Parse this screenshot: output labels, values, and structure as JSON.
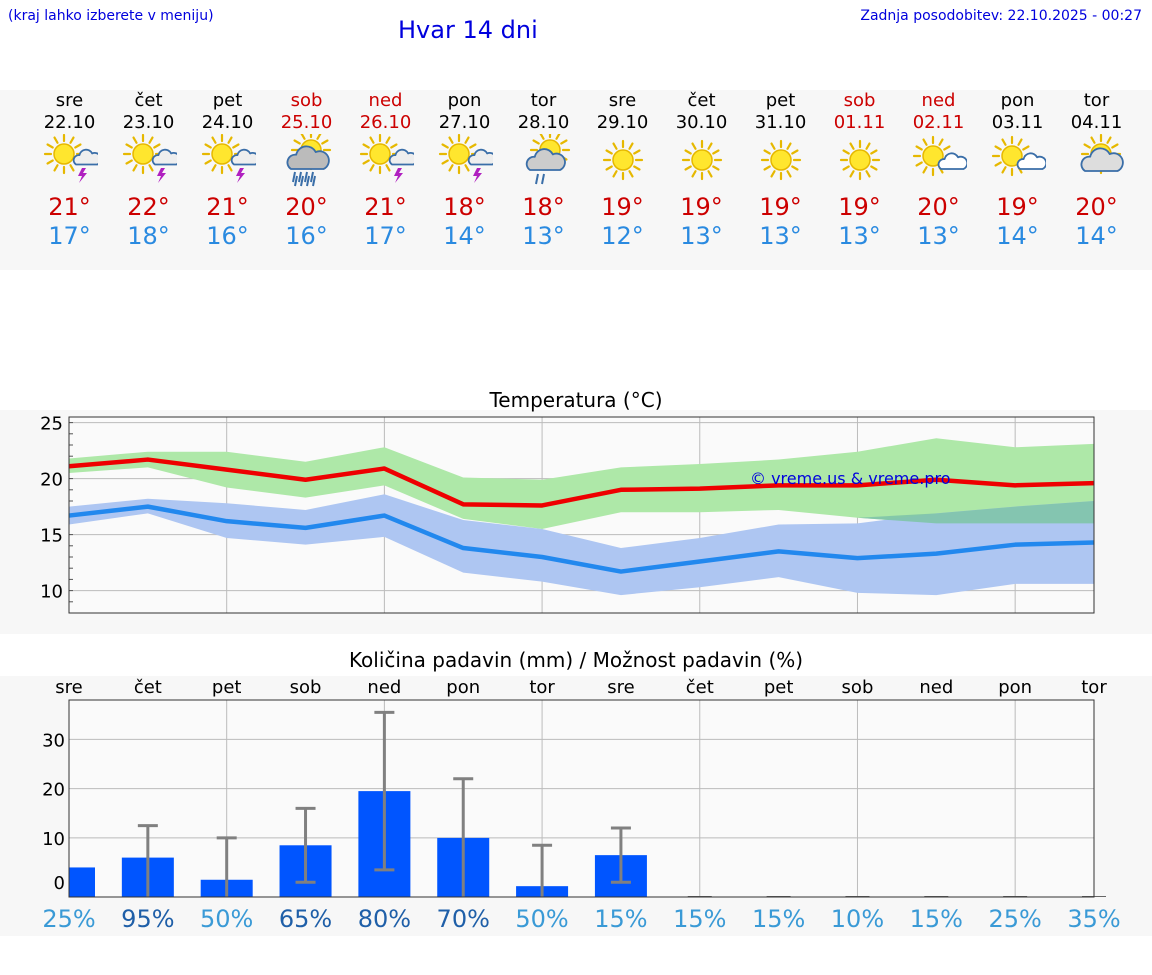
{
  "header": {
    "hint": "(kraj lahko izberete v meniju)",
    "title": "Hvar 14 dni",
    "updated": "Zadnja posodobitev: 22.10.2025 - 00:27"
  },
  "days": [
    {
      "name": "sre",
      "date": "22.10",
      "icon": "sun-cloud-thunder-icon",
      "tmax": "21°",
      "tmin": "17°",
      "weekend": false
    },
    {
      "name": "čet",
      "date": "23.10",
      "icon": "sun-cloud-thunder-icon",
      "tmax": "22°",
      "tmin": "18°",
      "weekend": false
    },
    {
      "name": "pet",
      "date": "24.10",
      "icon": "sun-cloud-thunder-icon",
      "tmax": "21°",
      "tmin": "16°",
      "weekend": false
    },
    {
      "name": "sob",
      "date": "25.10",
      "icon": "sun-cloud-rain-icon",
      "tmax": "20°",
      "tmin": "16°",
      "weekend": true
    },
    {
      "name": "ned",
      "date": "26.10",
      "icon": "sun-cloud-thunder-icon",
      "tmax": "21°",
      "tmin": "17°",
      "weekend": true
    },
    {
      "name": "pon",
      "date": "27.10",
      "icon": "sun-cloud-thunder-icon",
      "tmax": "18°",
      "tmin": "14°",
      "weekend": false
    },
    {
      "name": "tor",
      "date": "28.10",
      "icon": "sun-cloud-light-rain-icon",
      "tmax": "18°",
      "tmin": "13°",
      "weekend": false
    },
    {
      "name": "sre",
      "date": "29.10",
      "icon": "sun-icon",
      "tmax": "19°",
      "tmin": "12°",
      "weekend": false
    },
    {
      "name": "čet",
      "date": "30.10",
      "icon": "sun-icon",
      "tmax": "19°",
      "tmin": "13°",
      "weekend": false
    },
    {
      "name": "pet",
      "date": "31.10",
      "icon": "sun-icon",
      "tmax": "19°",
      "tmin": "13°",
      "weekend": false
    },
    {
      "name": "sob",
      "date": "01.11",
      "icon": "sun-icon",
      "tmax": "19°",
      "tmin": "13°",
      "weekend": true
    },
    {
      "name": "ned",
      "date": "02.11",
      "icon": "sun-small-cloud-icon",
      "tmax": "20°",
      "tmin": "13°",
      "weekend": true
    },
    {
      "name": "pon",
      "date": "03.11",
      "icon": "sun-small-cloud-icon",
      "tmax": "19°",
      "tmin": "14°",
      "weekend": false
    },
    {
      "name": "tor",
      "date": "04.11",
      "icon": "sun-big-cloud-icon",
      "tmax": "20°",
      "tmin": "14°",
      "weekend": false
    }
  ],
  "chart_data": [
    {
      "type": "line",
      "title": "Temperatura (°C)",
      "ylim": [
        8,
        25.5
      ],
      "yticks": [
        "10",
        "15",
        "20",
        "25"
      ],
      "watermark": "© vreme.us & vreme.pro",
      "colors": {
        "max": "#ee0000",
        "min": "#2288ee",
        "max_band": "#aee8a8",
        "min_band": "#aec6f2",
        "overlap": "#7fc4a8"
      },
      "series": [
        {
          "name": "max",
          "values": [
            21.1,
            21.7,
            20.8,
            19.9,
            20.9,
            17.7,
            17.6,
            19.0,
            19.1,
            19.4,
            19.4,
            19.9,
            19.4,
            19.6
          ],
          "low": [
            20.5,
            21.0,
            19.2,
            18.3,
            19.4,
            16.4,
            15.5,
            17.0,
            17.0,
            17.2,
            16.5,
            16.0,
            16.0,
            16.0
          ],
          "high": [
            21.8,
            22.4,
            22.4,
            21.5,
            22.8,
            20.1,
            19.9,
            21.0,
            21.3,
            21.7,
            22.4,
            23.6,
            22.8,
            23.1
          ]
        },
        {
          "name": "min",
          "values": [
            16.7,
            17.5,
            16.2,
            15.6,
            16.7,
            13.8,
            13.0,
            11.7,
            12.6,
            13.5,
            12.9,
            13.3,
            14.1,
            14.3
          ],
          "low": [
            15.9,
            16.9,
            14.7,
            14.1,
            14.8,
            11.6,
            10.8,
            9.6,
            10.3,
            11.2,
            9.8,
            9.6,
            10.6,
            10.6
          ],
          "high": [
            17.5,
            18.2,
            17.8,
            17.2,
            18.6,
            16.3,
            15.5,
            13.8,
            14.7,
            15.9,
            16.0,
            16.9,
            17.5,
            18.0
          ]
        }
      ]
    },
    {
      "type": "bar",
      "title": "Količina padavin (mm) / Možnost padavin (%)",
      "categories": [
        "sre",
        "čet",
        "pet",
        "sob",
        "ned",
        "pon",
        "tor",
        "sre",
        "čet",
        "pet",
        "sob",
        "ned",
        "pon",
        "tor"
      ],
      "ylim": [
        -2,
        38
      ],
      "yticks": [
        "0",
        "10",
        "20",
        "30"
      ],
      "values": [
        4,
        6,
        1.5,
        8.5,
        19.5,
        10,
        0.2,
        6.5,
        0,
        0,
        0,
        0,
        0,
        0
      ],
      "err_low": [
        0,
        0,
        0,
        1,
        3.5,
        0,
        0,
        1,
        0,
        0,
        0,
        0,
        0,
        0
      ],
      "err_high": [
        0,
        12.5,
        10,
        16,
        35.5,
        22,
        8.5,
        12,
        0,
        0,
        0,
        0,
        0,
        0
      ],
      "probability": [
        "25%",
        "95%",
        "50%",
        "65%",
        "80%",
        "70%",
        "50%",
        "15%",
        "15%",
        "15%",
        "10%",
        "15%",
        "25%",
        "35%"
      ],
      "colors": {
        "bar": "#0055ff",
        "error": "#808080",
        "prob_high": "#1f5fa8",
        "prob_low": "#3a9ad6"
      }
    }
  ]
}
